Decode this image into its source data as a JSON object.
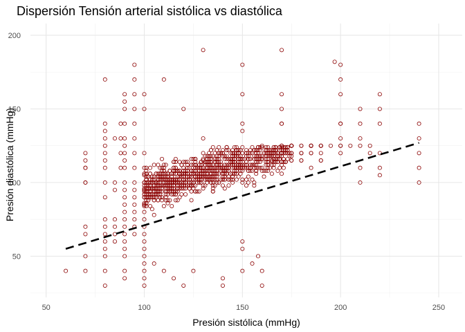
{
  "chart_data": {
    "type": "scatter",
    "title": "Dispersión Tensión arterial sistólica vs diastólica",
    "xlabel": "Presión sistólica (mmHg)",
    "ylabel": "Presión diastólica (mmHg)",
    "xlim": [
      42,
      262
    ],
    "ylim": [
      22,
      208
    ],
    "x_ticks": [
      50,
      100,
      150,
      200,
      250
    ],
    "y_ticks": [
      50,
      100,
      150,
      200
    ],
    "grid": true,
    "legend": "none",
    "point_color": "#8b0000",
    "trend_color": "#000000",
    "trend_line": {
      "style": "dashed",
      "x": [
        60,
        240
      ],
      "y": [
        55,
        127
      ]
    },
    "series": [
      {
        "x": [
          60,
          70,
          70,
          70,
          70,
          70,
          70,
          70,
          70,
          70,
          70,
          80,
          80,
          80,
          80,
          80,
          80,
          80,
          80,
          80,
          80,
          80,
          80,
          80,
          80,
          80,
          80,
          80,
          80,
          85,
          85,
          85,
          85,
          85,
          85,
          85,
          88,
          88,
          88,
          88,
          90,
          90,
          90,
          90,
          90,
          90,
          90,
          90,
          90,
          90,
          90,
          90,
          90,
          90,
          90,
          90,
          90,
          90,
          90,
          90,
          90,
          90,
          95,
          95,
          95,
          95,
          95,
          95,
          95,
          95,
          95,
          95,
          95,
          95,
          95,
          95,
          95,
          95,
          100,
          100,
          100,
          100,
          100,
          100,
          100,
          100,
          100,
          100,
          100,
          100,
          100,
          100,
          100,
          100,
          100,
          100,
          100,
          100,
          100,
          100,
          100,
          100,
          110,
          130,
          130,
          150,
          150,
          170,
          170,
          170,
          197,
          200,
          200,
          200,
          200,
          200,
          200,
          210,
          210,
          210,
          210,
          210,
          220,
          220,
          220,
          220,
          220,
          220,
          240,
          240,
          240,
          240,
          240,
          120,
          130,
          130,
          150,
          150,
          160,
          165,
          168,
          170,
          170,
          175,
          180,
          180,
          190,
          200,
          160,
          160,
          158,
          155,
          150,
          150,
          150,
          140,
          140,
          125,
          120,
          115,
          110,
          105
        ],
        "y": [
          40,
          120,
          115,
          110,
          110,
          100,
          100,
          70,
          65,
          50,
          40,
          170,
          140,
          135,
          130,
          125,
          120,
          115,
          110,
          100,
          90,
          75,
          70,
          65,
          60,
          55,
          50,
          40,
          30,
          130,
          100,
          95,
          75,
          70,
          65,
          60,
          140,
          130,
          120,
          110,
          160,
          155,
          150,
          140,
          130,
          125,
          120,
          115,
          110,
          100,
          95,
          90,
          85,
          80,
          75,
          70,
          65,
          60,
          55,
          50,
          40,
          35,
          180,
          170,
          160,
          150,
          140,
          130,
          120,
          110,
          100,
          95,
          90,
          85,
          80,
          75,
          70,
          65,
          160,
          150,
          100,
          95,
          90,
          85,
          80,
          75,
          70,
          65,
          60,
          55,
          50,
          45,
          40,
          35,
          30,
          120,
          110,
          105,
          100,
          95,
          90,
          85,
          170,
          190,
          130,
          180,
          160,
          190,
          160,
          140,
          182,
          180,
          170,
          160,
          140,
          130,
          120,
          150,
          140,
          130,
          110,
          100,
          160,
          150,
          140,
          120,
          110,
          105,
          140,
          130,
          120,
          110,
          100,
          150,
          115,
          110,
          140,
          135,
          125,
          115,
          120,
          150,
          140,
          125,
          125,
          120,
          115,
          140,
          40,
          30,
          50,
          45,
          60,
          55,
          40,
          30,
          35,
          40,
          30,
          35,
          40,
          45
        ]
      },
      {
        "x": [],
        "y": []
      }
    ]
  }
}
